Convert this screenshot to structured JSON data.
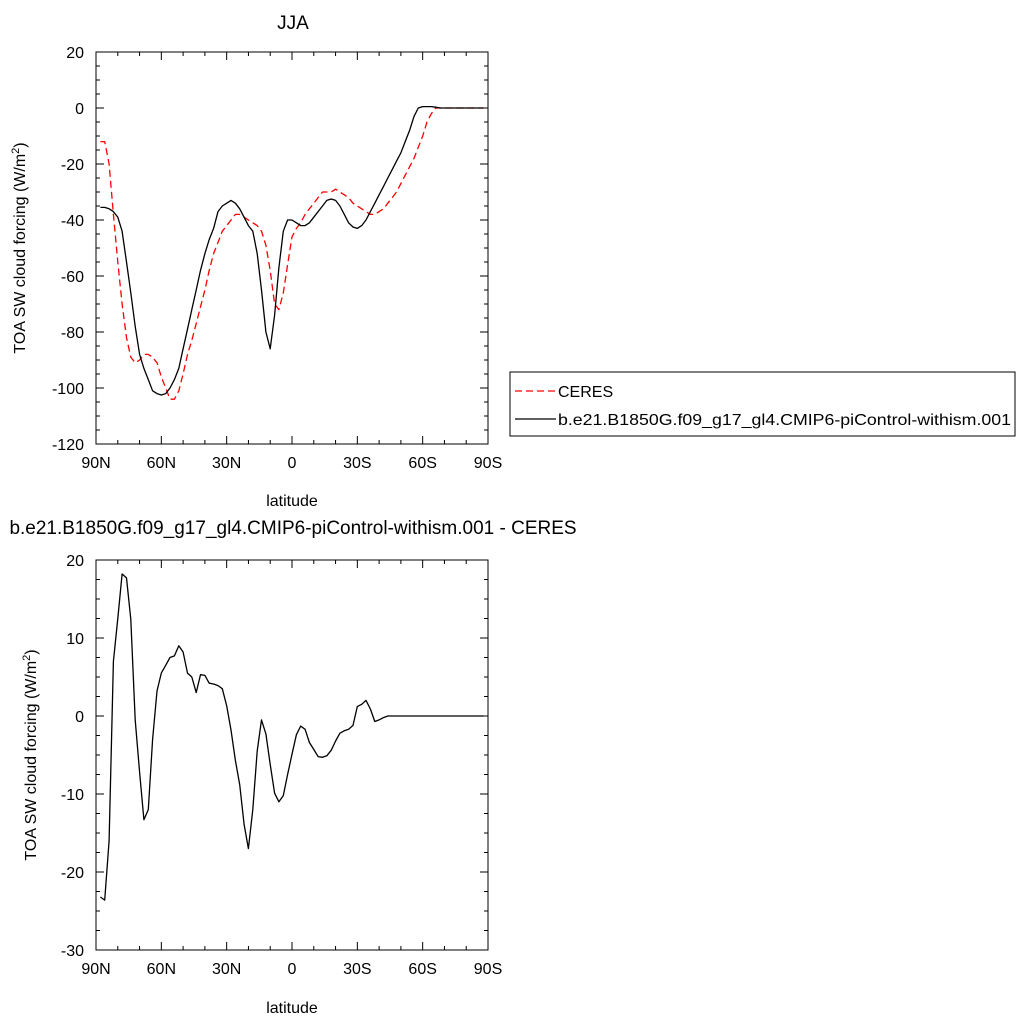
{
  "chart_data": [
    {
      "type": "line",
      "title": "JJA",
      "xlabel": "latitude",
      "ylabel": "TOA SW cloud forcing (W/m",
      "ylabel_sup": "2",
      "ylabel_close": ")",
      "xlim": [
        90,
        -90
      ],
      "ylim": [
        -120,
        20
      ],
      "xticks": [
        90,
        60,
        30,
        0,
        -30,
        -60,
        -90
      ],
      "xtick_labels": [
        "90N",
        "60N",
        "30N",
        "0",
        "30S",
        "60S",
        "90S"
      ],
      "yticks": [
        -120,
        -100,
        -80,
        -60,
        -40,
        -20,
        0,
        20
      ],
      "ytick_labels": [
        "-120",
        "-100",
        "-80",
        "-60",
        "-40",
        "-20",
        "0",
        "20"
      ],
      "legend": "right-bottom, outside plot",
      "series": [
        {
          "name": "CERES",
          "color": "#ff0000",
          "style": "dashed",
          "x": [
            88,
            86,
            84,
            82,
            80,
            78,
            76,
            74,
            72,
            70,
            68,
            66,
            64,
            62,
            60,
            58,
            56,
            54,
            52,
            50,
            48,
            46,
            44,
            42,
            40,
            38,
            36,
            34,
            32,
            30,
            28,
            26,
            24,
            22,
            20,
            18,
            16,
            14,
            12,
            10,
            8,
            6,
            4,
            2,
            0,
            -2,
            -4,
            -6,
            -8,
            -10,
            -12,
            -14,
            -16,
            -18,
            -20,
            -22,
            -24,
            -26,
            -28,
            -30,
            -32,
            -34,
            -36,
            -38,
            -40,
            -42,
            -44,
            -46,
            -48,
            -50,
            -52,
            -54,
            -56,
            -58,
            -60,
            -62,
            -64,
            -66,
            -68,
            -70,
            -72,
            -74,
            -76,
            -78,
            -80,
            -82,
            -84,
            -86,
            -88
          ],
          "y": [
            -12,
            -12,
            -20,
            -38,
            -55,
            -70,
            -82,
            -89,
            -91,
            -90,
            -88,
            -88,
            -89,
            -91,
            -96,
            -100,
            -104,
            -104,
            -101,
            -95,
            -88,
            -83,
            -77,
            -71,
            -65,
            -58,
            -52,
            -48,
            -44,
            -42,
            -40,
            -38,
            -38,
            -39,
            -40,
            -41,
            -42,
            -44,
            -49,
            -58,
            -70,
            -72,
            -66,
            -56,
            -46,
            -43,
            -41,
            -38,
            -36,
            -34,
            -32,
            -30,
            -30,
            -30,
            -29,
            -30,
            -31,
            -32,
            -34,
            -35,
            -36,
            -37,
            -38,
            -38,
            -37,
            -36,
            -34,
            -32,
            -30,
            -27,
            -24,
            -21,
            -18,
            -14,
            -10,
            -5,
            -2,
            0,
            0,
            0,
            0,
            0,
            0,
            0,
            0,
            0,
            0,
            0,
            0
          ]
        },
        {
          "name": "b.e21.B1850G.f09_g17_gl4.CMIP6-piControl-withism.001",
          "color": "#000000",
          "style": "solid",
          "x": [
            88,
            86,
            84,
            82,
            80,
            78,
            76,
            74,
            72,
            70,
            68,
            66,
            64,
            62,
            60,
            58,
            56,
            54,
            52,
            50,
            48,
            46,
            44,
            42,
            40,
            38,
            36,
            34,
            32,
            30,
            28,
            26,
            24,
            22,
            20,
            18,
            16,
            14,
            12,
            10,
            8,
            6,
            4,
            2,
            0,
            -2,
            -4,
            -6,
            -8,
            -10,
            -12,
            -14,
            -16,
            -18,
            -20,
            -22,
            -24,
            -26,
            -28,
            -30,
            -32,
            -34,
            -36,
            -38,
            -40,
            -42,
            -44,
            -46,
            -48,
            -50,
            -52,
            -54,
            -56,
            -58,
            -60,
            -62,
            -64,
            -66,
            -68,
            -70,
            -72,
            -74,
            -76,
            -78,
            -80,
            -82,
            -84,
            -86,
            -88
          ],
          "y": [
            -35.5,
            -35.5,
            -36,
            -37,
            -39,
            -44,
            -55,
            -66,
            -78,
            -88,
            -93,
            -97,
            -101,
            -102,
            -102.5,
            -102,
            -100,
            -97,
            -93,
            -86,
            -79,
            -72,
            -65,
            -58,
            -52,
            -47,
            -43,
            -37,
            -35,
            -34,
            -33,
            -34,
            -36,
            -39,
            -42,
            -44,
            -52,
            -65,
            -80,
            -86,
            -74,
            -57,
            -44,
            -40,
            -40,
            -41,
            -42,
            -42,
            -41,
            -39,
            -37,
            -35,
            -33,
            -32.5,
            -33,
            -35,
            -38,
            -41,
            -42.5,
            -43,
            -42,
            -40,
            -37,
            -34,
            -31,
            -28,
            -25,
            -22,
            -19,
            -16,
            -12,
            -8,
            -3,
            0,
            0.5,
            0.5,
            0.5,
            0.3,
            0,
            0,
            0,
            0,
            0,
            0,
            0,
            0,
            0,
            0,
            0
          ]
        }
      ]
    },
    {
      "type": "line",
      "title": "b.e21.B1850G.f09_g17_gl4.CMIP6-piControl-withism.001 - CERES",
      "xlabel": "latitude",
      "ylabel": "TOA SW cloud forcing (W/m",
      "ylabel_sup": "2",
      "ylabel_close": ")",
      "xlim": [
        90,
        -90
      ],
      "ylim": [
        -30,
        20
      ],
      "xticks": [
        90,
        60,
        30,
        0,
        -30,
        -60,
        -90
      ],
      "xtick_labels": [
        "90N",
        "60N",
        "30N",
        "0",
        "30S",
        "60S",
        "90S"
      ],
      "yticks": [
        -30,
        -20,
        -10,
        0,
        10,
        20
      ],
      "ytick_labels": [
        "-30",
        "-20",
        "-10",
        "0",
        "10",
        "20"
      ],
      "series": [
        {
          "color": "#000000",
          "style": "solid",
          "x": [
            88,
            86,
            84,
            82,
            80,
            78,
            76,
            74,
            72,
            70,
            68,
            66,
            64,
            62,
            60,
            58,
            56,
            54,
            52,
            50,
            48,
            46,
            44,
            42,
            40,
            38,
            36,
            34,
            32,
            30,
            28,
            26,
            24,
            22,
            20,
            18,
            16,
            14,
            12,
            10,
            8,
            6,
            4,
            2,
            0,
            -2,
            -4,
            -6,
            -8,
            -10,
            -12,
            -14,
            -16,
            -18,
            -20,
            -22,
            -24,
            -26,
            -28,
            -30,
            -32,
            -34,
            -36,
            -38,
            -40,
            -42,
            -44,
            -46,
            -48,
            -50,
            -52,
            -54,
            -56,
            -58,
            -60,
            -62,
            -64,
            -66,
            -68,
            -70,
            -72,
            -74,
            -76,
            -78,
            -80,
            -82,
            -84,
            -86,
            -88
          ],
          "y": [
            -23.2,
            -23.6,
            -16,
            7,
            12.5,
            18.2,
            17.7,
            12.4,
            -0.5,
            -7.2,
            -13.3,
            -12,
            -3,
            3.2,
            5.5,
            6.5,
            7.5,
            7.7,
            9,
            8.2,
            5.5,
            5,
            3,
            5.3,
            5.2,
            4.2,
            4.1,
            3.9,
            3.5,
            1.3,
            -1.8,
            -5.7,
            -8.8,
            -13.9,
            -17,
            -12,
            -4.5,
            -0.5,
            -2.3,
            -6.2,
            -9.9,
            -11.0,
            -10.2,
            -7.5,
            -4.9,
            -2.4,
            -1.3,
            -1.7,
            -3.4,
            -4.3,
            -5.2,
            -5.3,
            -5.1,
            -4.4,
            -3.2,
            -2.2,
            -1.9,
            -1.7,
            -1.2,
            1.2,
            1.5,
            2.0,
            0.9,
            -0.7,
            -0.5,
            -0.2,
            0,
            0,
            0,
            0,
            0,
            0,
            0,
            0,
            0,
            0,
            0,
            0,
            0,
            0,
            0,
            0,
            0,
            0,
            0,
            0,
            0,
            0,
            0
          ]
        }
      ]
    }
  ]
}
